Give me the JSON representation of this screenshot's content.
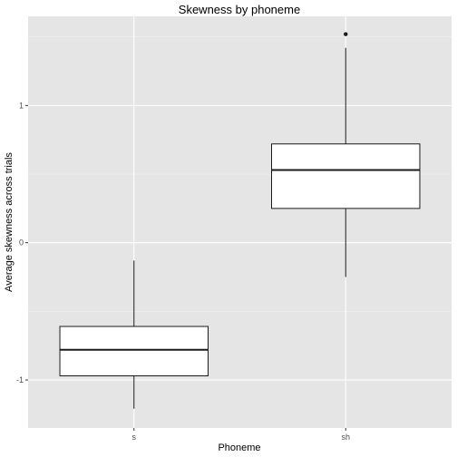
{
  "chart_data": {
    "type": "box",
    "title": "Skewness by phoneme",
    "xlabel": "Phoneme",
    "ylabel": "Average skewness across trials",
    "categories": [
      "s",
      "sh"
    ],
    "y_ticks": [
      -1,
      0,
      1
    ],
    "y_tick_labels": [
      "-1",
      "0",
      "1"
    ],
    "ylim": [
      -1.35,
      1.65
    ],
    "grid": true,
    "legend": "none",
    "boxes": [
      {
        "category": "s",
        "whisker_low": -1.21,
        "q1": -0.97,
        "median": -0.78,
        "q3": -0.61,
        "whisker_high": -0.13,
        "outliers": []
      },
      {
        "category": "sh",
        "whisker_low": -0.25,
        "q1": 0.25,
        "median": 0.53,
        "q3": 0.72,
        "whisker_high": 1.42,
        "outliers": [
          1.52
        ]
      }
    ],
    "colors": {
      "panel_background": "#e5e5e5",
      "grid_major": "#ffffff",
      "grid_minor": "#f2f2f2",
      "box_fill": "#ffffff",
      "box_stroke": "#1a1a1a",
      "tick_color": "#333333"
    }
  }
}
